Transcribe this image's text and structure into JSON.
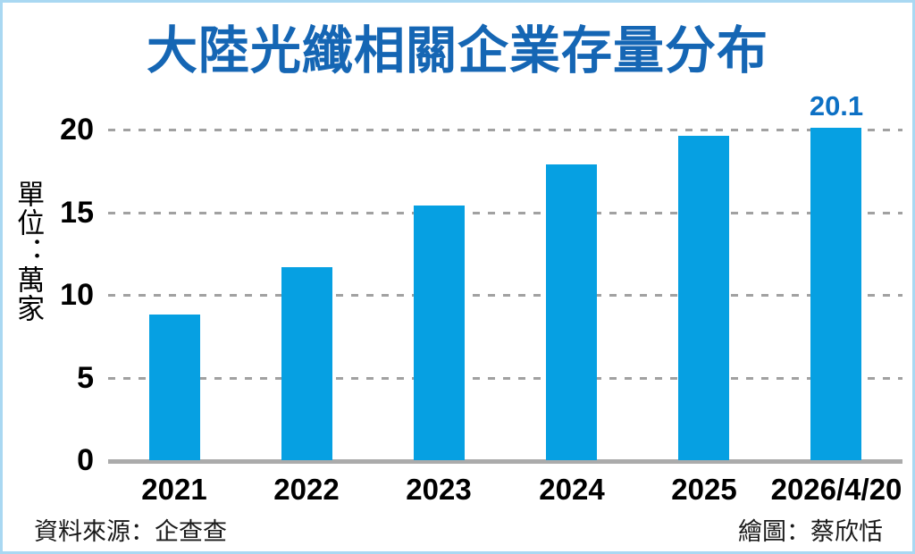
{
  "title": {
    "text": "大陸光纖相關企業存量分布",
    "color": "#1566b4"
  },
  "chart_data": {
    "type": "bar",
    "title": "大陸光纖相關企業存量分布",
    "unit_label": "單位：萬家",
    "categories": [
      "2021",
      "2022",
      "2023",
      "2024",
      "2025",
      "2026/4/20"
    ],
    "values": [
      8.8,
      11.7,
      15.4,
      17.9,
      19.6,
      20.1
    ],
    "y_ticks": [
      0,
      5,
      10,
      15,
      20
    ],
    "ylim": [
      0,
      20.5
    ],
    "xlabel": "",
    "ylabel": "單位：萬家",
    "grid": "horizontal-dashed",
    "legend_position": "none",
    "bar_color": "#06a0e2",
    "grid_color": "#a1a1a1",
    "axis_color": "#ababab",
    "annotations": [
      {
        "text": "20.1",
        "bar_index": 5,
        "color": "#0d70c4"
      }
    ]
  },
  "footer": {
    "source": "資料來源：企查查",
    "credit": "繪圖：蔡欣恬"
  },
  "frame": {
    "border_color": "#a9d8f2"
  }
}
